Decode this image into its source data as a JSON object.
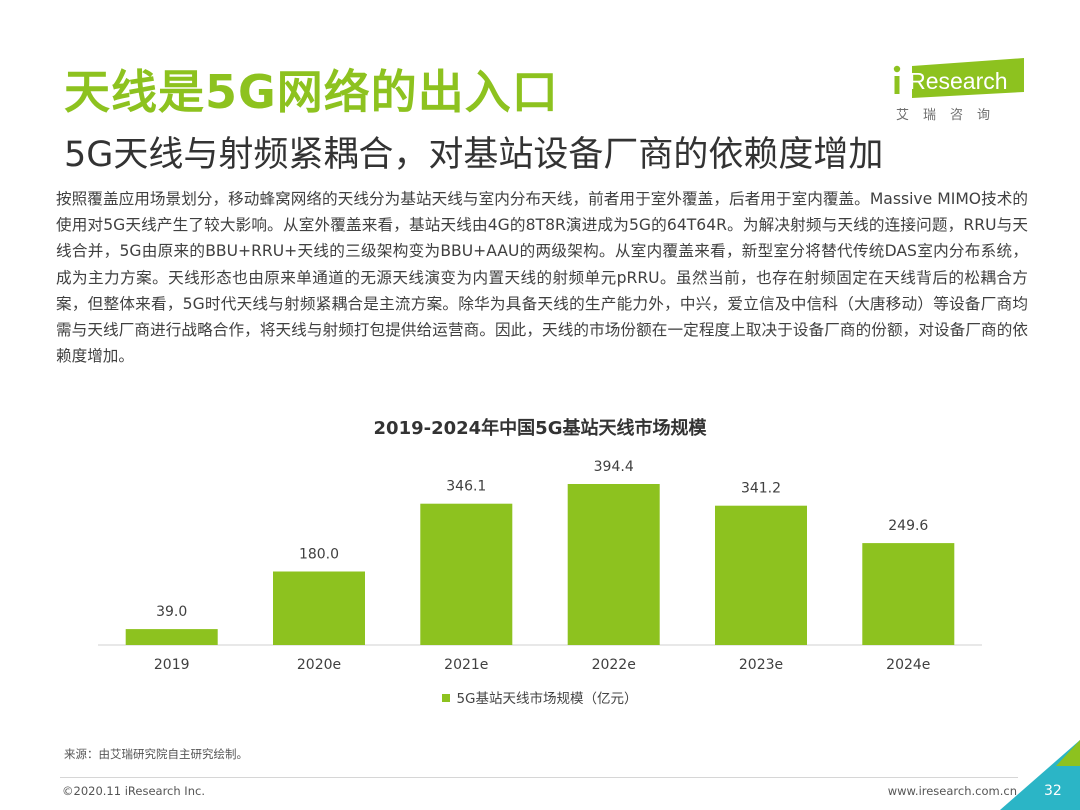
{
  "header": {
    "title": "天线是5G网络的出入口",
    "subtitle": "5G天线与射频紧耦合，对基站设备厂商的依赖度增加"
  },
  "logo": {
    "brand": "iResearch",
    "cn": "艾瑞咨询"
  },
  "intro": "按照覆盖应用场景划分，移动蜂窝网络的天线分为基站天线与室内分布天线，前者用于室外覆盖，后者用于室内覆盖。Massive MIMO技术的使用对5G天线产生了较大影响。从室外覆盖来看，基站天线由4G的8T8R演进成为5G的64T64R。为解决射频与天线的连接问题，RRU与天线合并，5G由原来的BBU+RRU+天线的三级架构变为BBU+AAU的两级架构。从室内覆盖来看，新型室分将替代传统DAS室内分布系统，成为主力方案。天线形态也由原来单通道的无源天线演变为内置天线的射频单元pRRU。虽然当前，也存在射频固定在天线背后的松耦合方案，但整体来看，5G时代天线与射频紧耦合是主流方案。除华为具备天线的生产能力外，中兴，爱立信及中信科（大唐移动）等设备厂商均需与天线厂商进行战略合作，将天线与射频打包提供给运营商。因此，天线的市场份额在一定程度上取决于设备厂商的份额，对设备厂商的依赖度增加。",
  "chart_data": {
    "type": "bar",
    "title": "2019-2024年中国5G基站天线市场规模",
    "categories": [
      "2019",
      "2020e",
      "2021e",
      "2022e",
      "2023e",
      "2024e"
    ],
    "series": [
      {
        "name": "5G基站天线市场规模（亿元）",
        "values": [
          39.0,
          180.0,
          346.1,
          394.4,
          341.2,
          249.6
        ],
        "labels": [
          "39.0",
          "180.0",
          "346.1",
          "394.4",
          "341.2",
          "249.6"
        ]
      }
    ],
    "ylim": [
      0,
      420
    ],
    "color": "#8dc21f",
    "legend_position": "bottom"
  },
  "source": "来源：由艾瑞研究院自主研究绘制。",
  "footer": {
    "copyright": "©2020.11 iResearch Inc.",
    "url": "www.iresearch.com.cn",
    "page": "32"
  },
  "colors": {
    "accent": "#8dc21f",
    "corner": "#2bb5c6"
  }
}
